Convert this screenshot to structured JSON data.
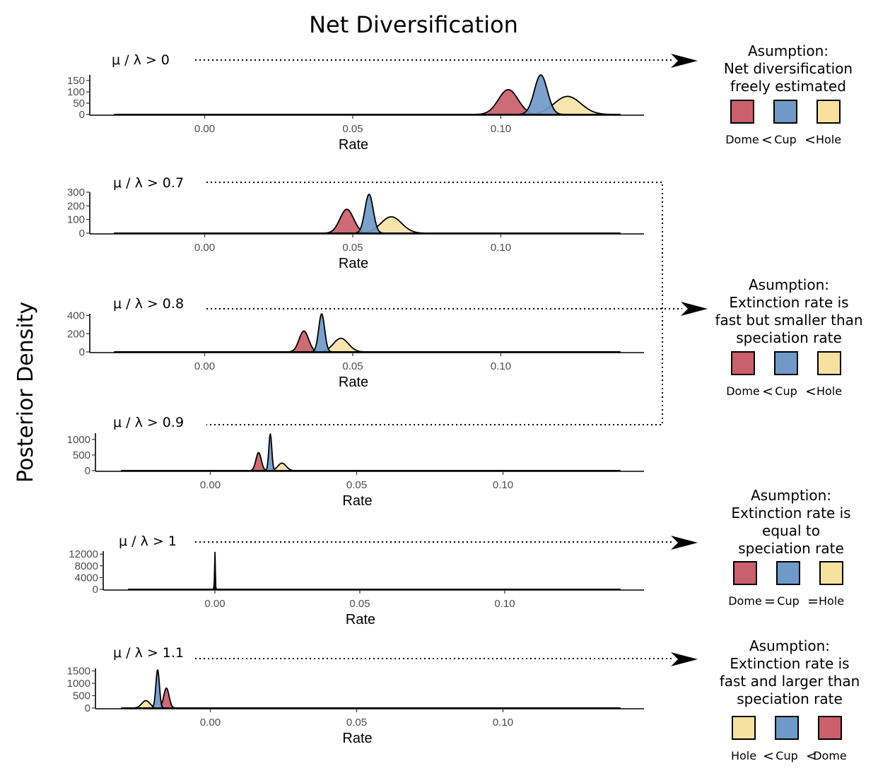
{
  "title": "Net Diversification",
  "ylabel": "Posterior Density",
  "colors": {
    "Dome": "#c9606b",
    "Cup": "#7099c8",
    "Hole": "#f7e0a0"
  },
  "chart_data": [
    {
      "type": "area",
      "condition": "μ / λ > 0",
      "xlabel": "Rate",
      "xlim": [
        -0.03,
        0.14
      ],
      "xticks": [
        "0.00",
        "0.05",
        "0.10"
      ],
      "ylim": [
        0,
        175
      ],
      "yticks": [
        "150",
        "100",
        "50",
        "0"
      ],
      "series": [
        {
          "category": "Hole",
          "mean": 0.1225,
          "sd": 0.0045,
          "peak": 80
        },
        {
          "category": "Dome",
          "mean": 0.1025,
          "sd": 0.0033,
          "peak": 110
        },
        {
          "category": "Cup",
          "mean": 0.1135,
          "sd": 0.0022,
          "peak": 175
        }
      ]
    },
    {
      "type": "area",
      "condition": "μ / λ > 0.7",
      "xlabel": "Rate",
      "xlim": [
        -0.03,
        0.14
      ],
      "xticks": [
        "0.00",
        "0.05",
        "0.10"
      ],
      "ylim": [
        0,
        300
      ],
      "yticks": [
        "300",
        "200",
        "100",
        "0"
      ],
      "series": [
        {
          "category": "Hole",
          "mean": 0.063,
          "sd": 0.0035,
          "peak": 120
        },
        {
          "category": "Dome",
          "mean": 0.048,
          "sd": 0.0023,
          "peak": 175
        },
        {
          "category": "Cup",
          "mean": 0.0555,
          "sd": 0.0014,
          "peak": 285
        }
      ]
    },
    {
      "type": "area",
      "condition": "μ / λ > 0.8",
      "xlabel": "Rate",
      "xlim": [
        -0.03,
        0.14
      ],
      "xticks": [
        "0.00",
        "0.05",
        "0.10"
      ],
      "ylim": [
        0,
        420
      ],
      "yticks": [
        "400",
        "200",
        "0"
      ],
      "series": [
        {
          "category": "Hole",
          "mean": 0.046,
          "sd": 0.0025,
          "peak": 150
        },
        {
          "category": "Dome",
          "mean": 0.0335,
          "sd": 0.0016,
          "peak": 230
        },
        {
          "category": "Cup",
          "mean": 0.0395,
          "sd": 0.001,
          "peak": 420
        }
      ]
    },
    {
      "type": "area",
      "condition": "μ / λ > 0.9",
      "xlabel": "Rate",
      "xlim": [
        -0.03,
        0.14
      ],
      "xticks": [
        "0.00",
        "0.05",
        "0.10"
      ],
      "ylim": [
        0,
        1200
      ],
      "yticks": [
        "1000",
        "500",
        "0"
      ],
      "series": [
        {
          "category": "Hole",
          "mean": 0.0245,
          "sd": 0.0014,
          "peak": 240
        },
        {
          "category": "Dome",
          "mean": 0.0165,
          "sd": 0.0009,
          "peak": 580
        },
        {
          "category": "Cup",
          "mean": 0.0205,
          "sd": 0.0005,
          "peak": 1180
        }
      ]
    },
    {
      "type": "area",
      "condition": "μ / λ > 1",
      "xlabel": "Rate",
      "xlim": [
        -0.03,
        0.14
      ],
      "xticks": [
        "0.00",
        "0.05",
        "0.10"
      ],
      "ylim": [
        0,
        13000
      ],
      "yticks": [
        "12000",
        "8000",
        "4000",
        "0"
      ],
      "series": [
        {
          "category": "Cup",
          "mean": 0.0,
          "sd": 0.00012,
          "peak": 13000
        },
        {
          "category": "Dome",
          "mean": 0.0,
          "sd": 8e-05,
          "peak": 9000
        },
        {
          "category": "Hole",
          "mean": 0.0,
          "sd": 9e-05,
          "peak": 4500
        }
      ]
    },
    {
      "type": "area",
      "condition": "μ / λ > 1.1",
      "xlabel": "Rate",
      "xlim": [
        -0.03,
        0.14
      ],
      "xticks": [
        "0.00",
        "0.05",
        "0.10"
      ],
      "ylim": [
        0,
        1600
      ],
      "yticks": [
        "1500",
        "1000",
        "500",
        "0"
      ],
      "series": [
        {
          "category": "Hole",
          "mean": -0.022,
          "sd": 0.0014,
          "peak": 300
        },
        {
          "category": "Dome",
          "mean": -0.015,
          "sd": 0.0009,
          "peak": 810
        },
        {
          "category": "Cup",
          "mean": -0.018,
          "sd": 0.0006,
          "peak": 1560
        }
      ]
    }
  ],
  "annotations": [
    {
      "heading": "Asumption:",
      "lines": [
        "Net diversification",
        "freely estimated"
      ],
      "legend": [
        "Dome",
        "Cup",
        "Hole"
      ],
      "ops": [
        "<",
        "<"
      ]
    },
    {
      "heading": "Asumption:",
      "lines": [
        "Extinction rate is",
        "fast but smaller than",
        "speciation rate"
      ],
      "legend": [
        "Dome",
        "Cup",
        "Hole"
      ],
      "ops": [
        "<",
        "<"
      ]
    },
    {
      "heading": "Asumption:",
      "lines": [
        "Extinction rate is",
        "equal to",
        "speciation rate"
      ],
      "legend": [
        "Dome",
        "Cup",
        "Hole"
      ],
      "ops": [
        "=",
        "="
      ]
    },
    {
      "heading": "Asumption:",
      "lines": [
        "Extinction rate is",
        "fast and larger than",
        "speciation rate"
      ],
      "legend": [
        "Hole",
        "Cup",
        "Dome"
      ],
      "ops": [
        "<",
        "<"
      ]
    }
  ]
}
